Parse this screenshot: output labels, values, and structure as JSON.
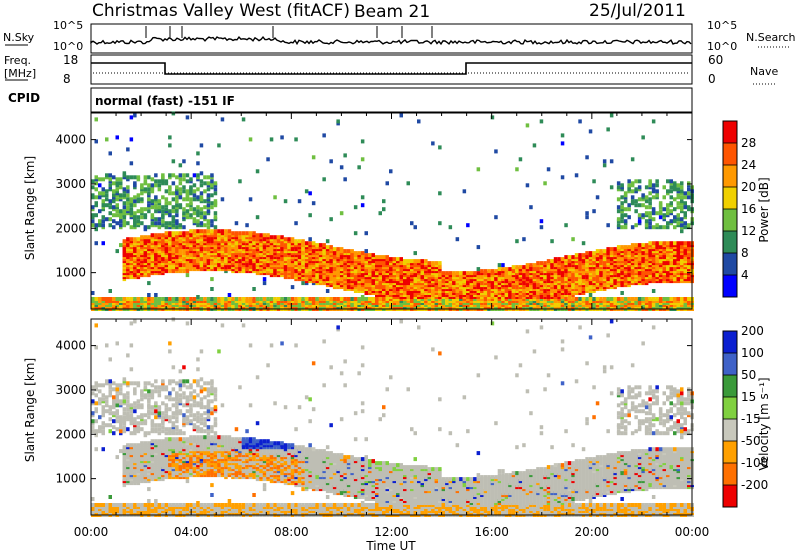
{
  "header": {
    "site": "Christmas Valley West (fitACF)",
    "beam": "Beam 21",
    "date": "25/Jul/2011"
  },
  "strip_labels": {
    "nsky": "N.Sky",
    "nsearch": "N.Search",
    "freq": "Freq.",
    "freq_unit": "[MHz]",
    "nave": "Nave",
    "cpid": "CPID",
    "mode": "normal (fast) -151 IF",
    "noise_ticks_left": [
      "10^5",
      "10^0"
    ],
    "noise_ticks_right": [
      "10^5",
      "10^0"
    ],
    "freq_ticks": [
      "18",
      "8"
    ],
    "nave_ticks": [
      "60",
      "0"
    ]
  },
  "colors": {
    "power": [
      "#0000ff",
      "#1f49a3",
      "#2e8b57",
      "#6fbf40",
      "#f0d000",
      "#ff9900",
      "#ff5500",
      "#ee0000"
    ],
    "velocity": [
      "#0b1fd0",
      "#3f62c8",
      "#3a9a3a",
      "#80d040",
      "#c8c8bc",
      "#ffa000",
      "#ff7000",
      "#ee0000"
    ],
    "ground_scatter": "#bebeb4"
  },
  "chart_data": [
    {
      "type": "heatmap",
      "name": "power",
      "xlabel": "Time UT",
      "ylabel": "Slant Range [km]",
      "x_ticks": [
        "00:00",
        "04:00",
        "08:00",
        "12:00",
        "16:00",
        "20:00",
        "00:00"
      ],
      "xlim_hours": [
        0,
        24
      ],
      "y_ticks": [
        1000,
        2000,
        3000,
        4000
      ],
      "ylim_km": [
        180,
        4600
      ],
      "colorbar": {
        "label": "Power [dB]",
        "ticks": [
          4,
          8,
          12,
          16,
          20,
          24,
          28
        ],
        "range": [
          0,
          32
        ]
      },
      "features": [
        {
          "feature": "main echo band",
          "t_start": 1.5,
          "t_end": 24,
          "range_start_km": 700,
          "range_end_km": 1700,
          "peak_dB": 30
        },
        {
          "feature": "strong patch",
          "t_start": 13.5,
          "t_end": 21,
          "range_start_km": 800,
          "range_end_km": 1100,
          "peak_dB": 29
        },
        {
          "feature": "far-range scatter",
          "t_start": 0,
          "t_end": 5,
          "range_start_km": 2000,
          "range_end_km": 3200,
          "peak_dB": 12
        },
        {
          "feature": "near-range band",
          "t_start": 0,
          "t_end": 24,
          "range_start_km": 180,
          "range_end_km": 450,
          "peak_dB": 22
        }
      ]
    },
    {
      "type": "heatmap",
      "name": "velocity",
      "xlabel": "Time UT",
      "ylabel": "Slant Range [km]",
      "x_ticks": [
        "00:00",
        "04:00",
        "08:00",
        "12:00",
        "16:00",
        "20:00",
        "00:00"
      ],
      "xlim_hours": [
        0,
        24
      ],
      "y_ticks": [
        1000,
        2000,
        3000,
        4000
      ],
      "ylim_km": [
        180,
        4600
      ],
      "colorbar": {
        "label": "Velocity [m s⁻¹]",
        "ticks": [
          200,
          100,
          50,
          15,
          -15,
          -50,
          -100,
          -200
        ],
        "range": [
          -250,
          250
        ]
      },
      "features": [
        {
          "feature": "ground scatter",
          "t_start": 0,
          "t_end": 24,
          "range_start_km": 700,
          "range_end_km": 1700,
          "velocity": 0
        },
        {
          "feature": "negative velocity region",
          "t_start": 3,
          "t_end": 8.5,
          "range_start_km": 600,
          "range_end_km": 1800,
          "velocity": -70
        },
        {
          "feature": "positive velocity region",
          "t_start": 6,
          "t_end": 8,
          "range_start_km": 1700,
          "range_end_km": 2300,
          "velocity": 150
        }
      ]
    }
  ]
}
